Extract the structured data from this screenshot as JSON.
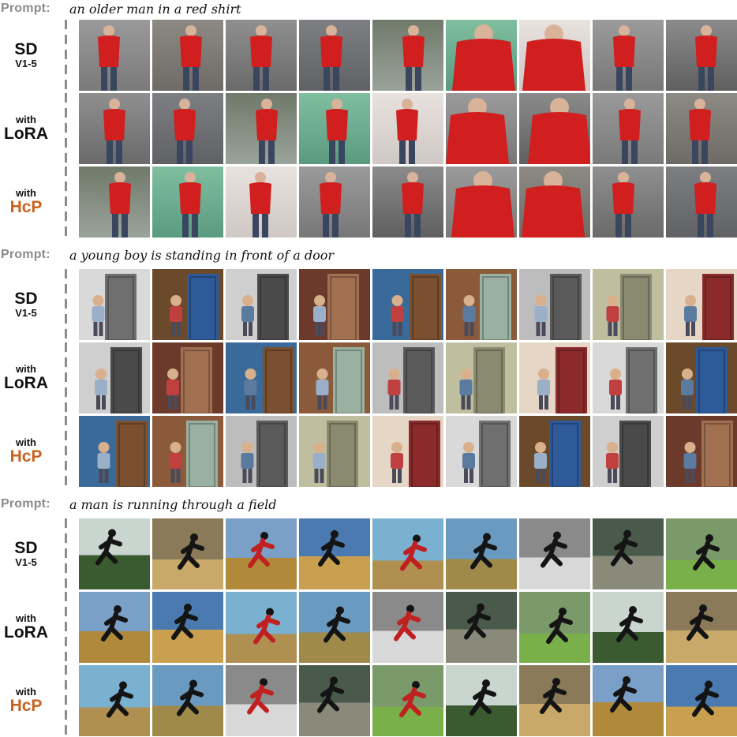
{
  "sections": [
    {
      "prompt_label": "Prompt:",
      "prompt_text": "an older man in a red shirt",
      "rows": [
        {
          "line1": "SD",
          "line2": "V1-5"
        },
        {
          "line1": "with",
          "line2": "LoRA"
        },
        {
          "line1": "with",
          "line2": "HcP"
        }
      ]
    },
    {
      "prompt_label": "Prompt:",
      "prompt_text": "a  young boy is standing in front of a door",
      "rows": [
        {
          "line1": "SD",
          "line2": "V1-5"
        },
        {
          "line1": "with",
          "line2": "LoRA"
        },
        {
          "line1": "with",
          "line2": "HcP"
        }
      ]
    },
    {
      "prompt_label": "Prompt:",
      "prompt_text": "a man is running through a field",
      "rows": [
        {
          "line1": "SD",
          "line2": "V1-5"
        },
        {
          "line1": "with",
          "line2": "LoRA"
        },
        {
          "line1": "with",
          "line2": "HcP"
        }
      ]
    }
  ],
  "colors": {
    "hcp_accent": "#c8621e",
    "prompt_label": "#8a8a8a"
  }
}
